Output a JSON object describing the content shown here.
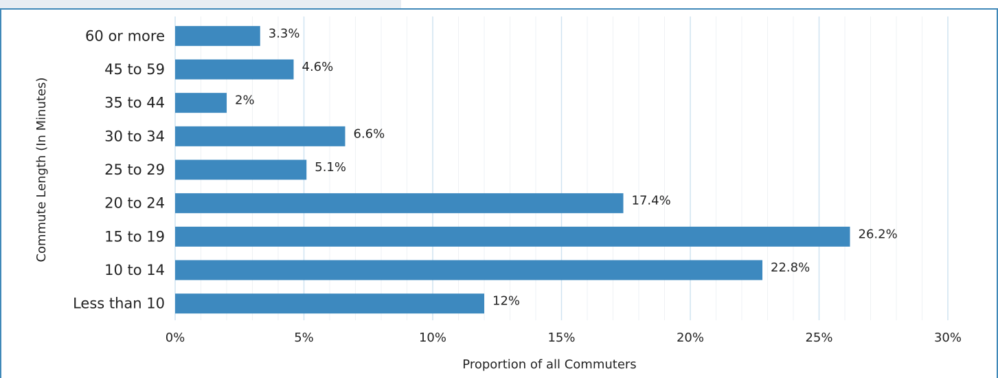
{
  "chart_data": {
    "type": "bar",
    "orientation": "horizontal",
    "categories": [
      "60 or more",
      "45 to 59",
      "35 to 44",
      "30 to 34",
      "25 to 29",
      "20 to 24",
      "15 to 19",
      "10 to 14",
      "Less than 10"
    ],
    "values": [
      3.3,
      4.6,
      2,
      6.6,
      5.1,
      17.4,
      26.2,
      22.8,
      12
    ],
    "value_labels": [
      "3.3%",
      "4.6%",
      "2%",
      "6.6%",
      "5.1%",
      "17.4%",
      "26.2%",
      "22.8%",
      "12%"
    ],
    "xlabel": "Proportion of all Commuters",
    "ylabel": "Commute Length (In Minutes)",
    "xlim": [
      0,
      30
    ],
    "xticks": [
      0,
      5,
      10,
      15,
      20,
      25,
      30
    ],
    "xtick_labels": [
      "0%",
      "5%",
      "10%",
      "15%",
      "20%",
      "25%",
      "30%"
    ],
    "grid": true,
    "bar_color": "#3d89bf",
    "gridline_color": "#cfe3f1"
  }
}
